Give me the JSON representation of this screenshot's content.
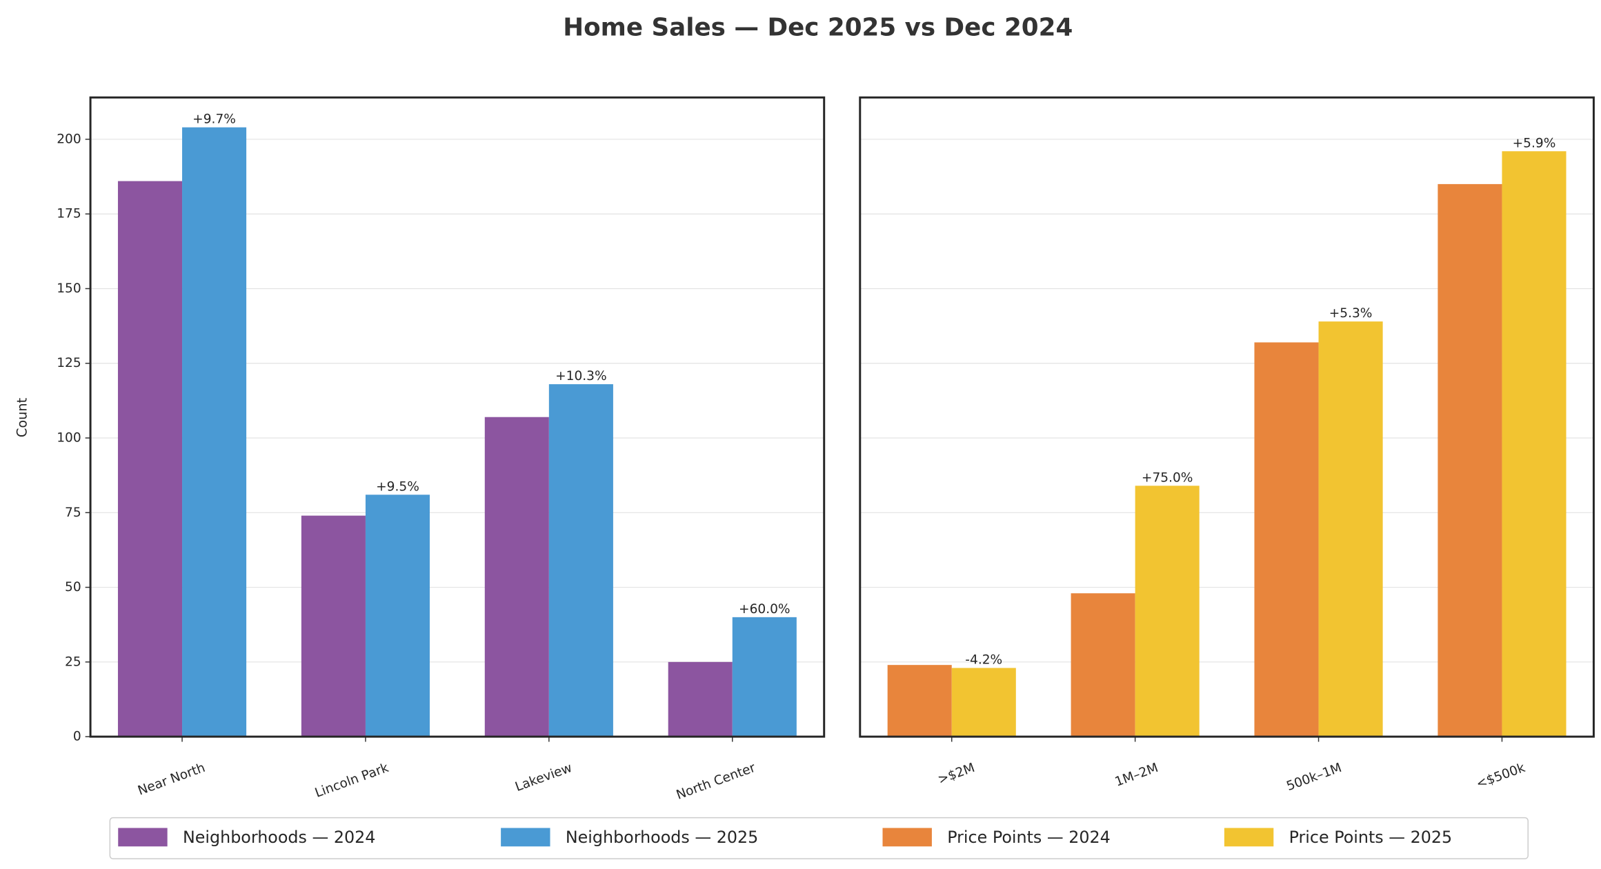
{
  "title": "Home Sales — Dec 2025 vs Dec 2024",
  "chart_data": [
    {
      "type": "bar",
      "ylabel": "Count",
      "categories": [
        "Near North",
        "Lincoln Park",
        "Lakeview",
        "North Center"
      ],
      "series": [
        {
          "name": "Neighborhoods — 2024",
          "color": "#8c55a0",
          "values": [
            186,
            74,
            107,
            25
          ]
        },
        {
          "name": "Neighborhoods — 2025",
          "color": "#4a9ad4",
          "values": [
            204,
            81,
            118,
            40
          ]
        }
      ],
      "annotations": [
        "+9.7%",
        "+9.5%",
        "+10.3%",
        "+60.0%"
      ],
      "ylim": [
        0,
        214
      ],
      "yticks": [
        0,
        25,
        50,
        75,
        100,
        125,
        150,
        175,
        200
      ],
      "grid": true
    },
    {
      "type": "bar",
      "categories": [
        ">$2M",
        "1M–2M",
        "500k–1M",
        "<$500k"
      ],
      "series": [
        {
          "name": "Price Points — 2024",
          "color": "#e8853c",
          "values": [
            24,
            48,
            132,
            185
          ]
        },
        {
          "name": "Price Points — 2025",
          "color": "#f2c431",
          "values": [
            23,
            84,
            139,
            196
          ]
        }
      ],
      "annotations": [
        "-4.2%",
        "+75.0%",
        "+5.3%",
        "+5.9%"
      ],
      "ylim": [
        0,
        214
      ],
      "grid": true
    }
  ]
}
